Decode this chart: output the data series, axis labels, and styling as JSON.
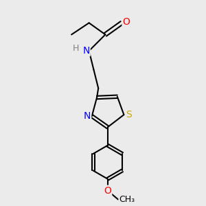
{
  "background_color": "#ebebeb",
  "bond_color": "#000000",
  "atom_colors": {
    "O": "#ff0000",
    "N": "#0000ff",
    "S": "#ccaa00",
    "H": "#808080",
    "C": "#000000"
  },
  "font_size": 9,
  "fig_size": [
    3.0,
    3.0
  ],
  "dpi": 100
}
